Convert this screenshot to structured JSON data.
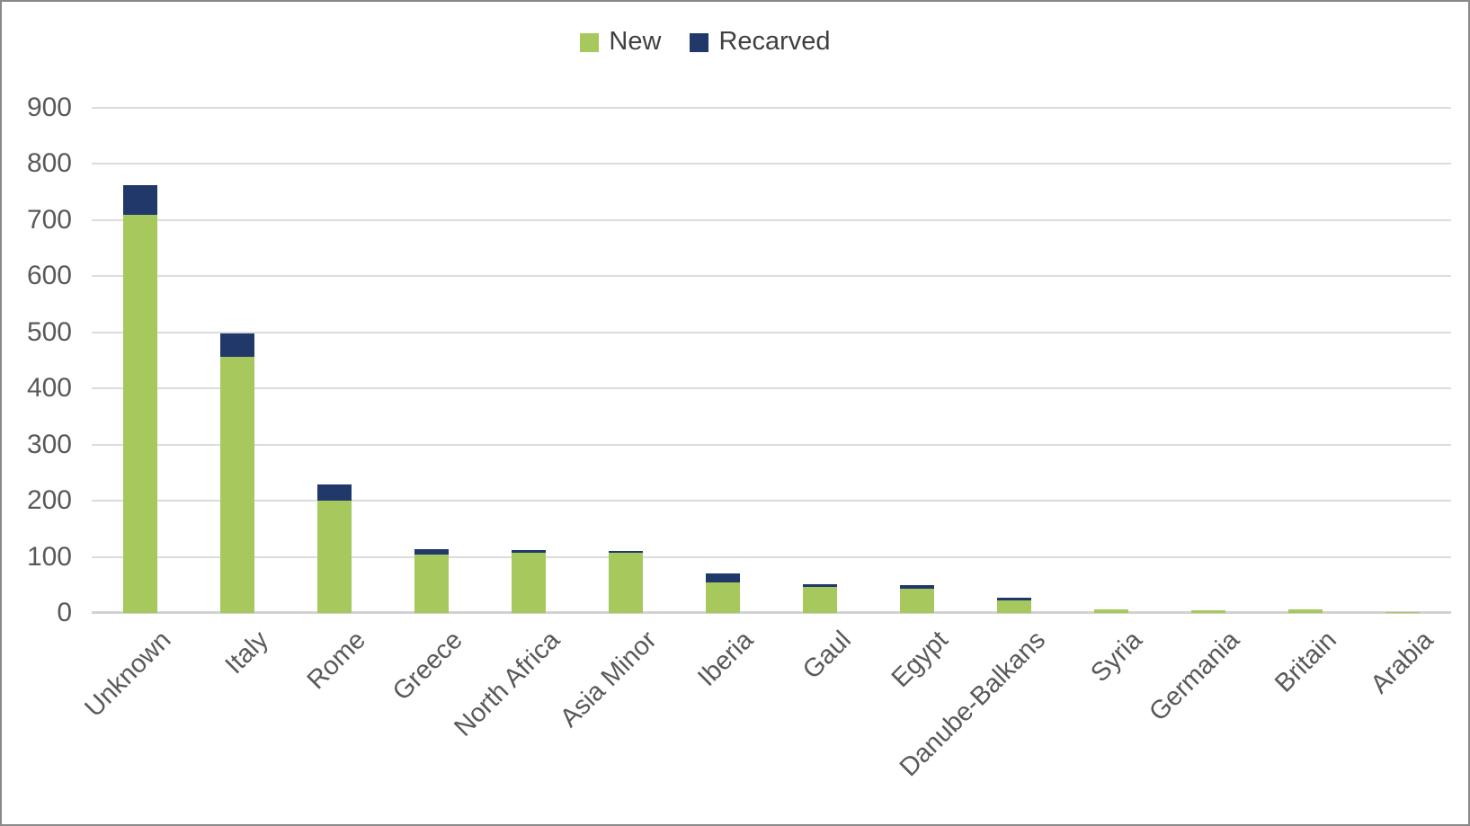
{
  "chart_data": {
    "type": "bar",
    "stacked": true,
    "title": "",
    "xlabel": "",
    "ylabel": "",
    "categories": [
      "Unknown",
      "Italy",
      "Rome",
      "Greece",
      "North Africa",
      "Asia Minor",
      "Iberia",
      "Gaul",
      "Egypt",
      "Danube-Balkans",
      "Syria",
      "Germania",
      "Britain",
      "Arabia"
    ],
    "series": [
      {
        "name": "New",
        "color": "#A6C85C",
        "values": [
          710,
          456,
          201,
          104,
          108,
          107,
          55,
          47,
          43,
          22,
          7,
          5,
          6,
          2
        ]
      },
      {
        "name": "Recarved",
        "color": "#21386B",
        "values": [
          52,
          42,
          28,
          9,
          4,
          3,
          15,
          5,
          7,
          5,
          0,
          0,
          0,
          0
        ]
      }
    ],
    "ylim": [
      0,
      900
    ],
    "ytick_step": 100,
    "y_tick_labels": [
      "0",
      "100",
      "200",
      "300",
      "400",
      "500",
      "600",
      "700",
      "800",
      "900"
    ],
    "grid": true,
    "legend_position": "top-center"
  },
  "legend": {
    "items": [
      {
        "label": "New",
        "color": "#A6C85C"
      },
      {
        "label": "Recarved",
        "color": "#21386B"
      }
    ]
  },
  "colors": {
    "new_series": "#A6C85C",
    "recarved_series": "#21386B",
    "gridline": "#DCDCDC",
    "axis_line": "#D2D2D2",
    "tick_text": "#595959",
    "legend_text": "#404040",
    "background": "#FFFFFF",
    "frame_border": "#898989"
  }
}
